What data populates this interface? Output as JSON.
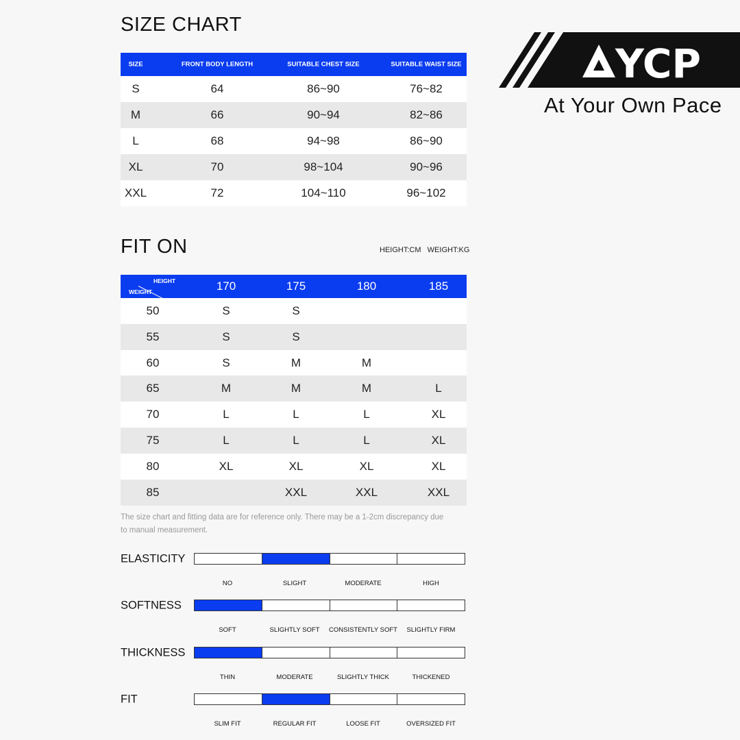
{
  "size_chart": {
    "title": "SIZE CHART",
    "headers": [
      "SIZE",
      "FRONT BODY LENGTH",
      "SUITABLE CHEST SIZE",
      "SUITABLE WAIST SIZE"
    ],
    "rows": [
      [
        "S",
        "64",
        "86~90",
        "76~82"
      ],
      [
        "M",
        "66",
        "90~94",
        "82~86"
      ],
      [
        "L",
        "68",
        "94~98",
        "86~90"
      ],
      [
        "XL",
        "70",
        "98~104",
        "90~96"
      ],
      [
        "XXL",
        "72",
        "104~110",
        "96~102"
      ]
    ]
  },
  "brand": {
    "logo_text": "AYCP",
    "tagline": "At Your Own Pace"
  },
  "fit_on": {
    "title": "FIT ON",
    "units": "HEIGHT:CM   WEIGHT:KG",
    "corner_height": "HEIGHT",
    "corner_weight": "WEIGHT",
    "heights": [
      "170",
      "175",
      "180",
      "185"
    ],
    "rows": [
      [
        "50",
        "S",
        "S",
        "",
        ""
      ],
      [
        "55",
        "S",
        "S",
        "",
        ""
      ],
      [
        "60",
        "S",
        "M",
        "M",
        ""
      ],
      [
        "65",
        "M",
        "M",
        "M",
        "L"
      ],
      [
        "70",
        "L",
        "L",
        "L",
        "XL"
      ],
      [
        "75",
        "L",
        "L",
        "L",
        "XL"
      ],
      [
        "80",
        "XL",
        "XL",
        "XL",
        "XL"
      ],
      [
        "85",
        "",
        "XXL",
        "XXL",
        "XXL"
      ]
    ]
  },
  "note": {
    "line1": "The size chart and fitting data are for reference only. There may be a 1-2cm discrepancy due",
    "line2": "to manual measurement."
  },
  "accent_color": "#0a3cf0",
  "attributes": [
    {
      "label": "ELASTICITY",
      "options": [
        "NO",
        "SLIGHT",
        "MODERATE",
        "HIGH"
      ],
      "selected": 1
    },
    {
      "label": "SOFTNESS",
      "options": [
        "SOFT",
        "SLIGHTLY SOFT",
        "CONSISTENTLY SOFT",
        "SLIGHTLY FIRM"
      ],
      "selected": 0
    },
    {
      "label": "THICKNESS",
      "options": [
        "THIN",
        "MODERATE",
        "SLIGHTLY THICK",
        "THICKENED"
      ],
      "selected": 0
    },
    {
      "label": "FIT",
      "options": [
        "SLIM FIT",
        "REGULAR FIT",
        "LOOSE FIT",
        "OVERSIZED FIT"
      ],
      "selected": 1
    }
  ]
}
